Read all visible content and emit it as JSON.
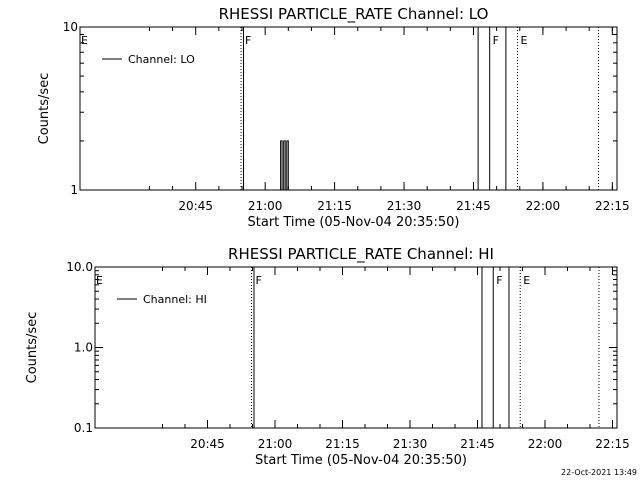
{
  "colors": {
    "background": "#ffffff",
    "foreground": "#000000"
  },
  "timestamp": "22-Oct-2021 13:49",
  "chart_data": [
    {
      "type": "line",
      "title": "RHESSI PARTICLE_RATE Channel: LO",
      "xlabel": "Start Time (05-Nov-04 20:35:50)",
      "ylabel": "Counts/sec",
      "yscale": "log",
      "ylim": [
        1,
        10
      ],
      "xlim_minutes": [
        -15.83,
        100.17
      ],
      "x_ticks": [
        "20:45",
        "21:00",
        "21:15",
        "21:30",
        "21:45",
        "22:00",
        "22:15"
      ],
      "y_ticks": [
        "1",
        "10"
      ],
      "series": [
        {
          "name": "Channel: LO",
          "style": "histogram",
          "x": [
            "21:02:40",
            "21:03:20",
            "21:03:40",
            "21:04:00",
            "21:04:20",
            "21:04:40",
            "21:05:00",
            "21:05:20"
          ],
          "values": [
            1,
            2,
            1,
            2,
            1,
            2,
            1,
            1
          ]
        }
      ],
      "markers": [
        {
          "label": "E",
          "time": "20:35:50",
          "style": "none"
        },
        {
          "label": "F",
          "time": "20:55:00",
          "style": "dotted-solid"
        },
        {
          "label": "",
          "time": "21:46:00",
          "style": "solid"
        },
        {
          "label": "F",
          "time": "21:48:30",
          "style": "solid"
        },
        {
          "label": "",
          "time": "21:52:00",
          "style": "solid"
        },
        {
          "label": "E",
          "time": "21:54:30",
          "style": "dotted"
        },
        {
          "label": "",
          "time": "22:12:00",
          "style": "dotted"
        }
      ],
      "legend": {
        "position": "top-left",
        "entries": [
          "Channel: LO"
        ]
      }
    },
    {
      "type": "line",
      "title": "RHESSI PARTICLE_RATE Channel: HI",
      "xlabel": "Start Time (05-Nov-04 20:35:50)",
      "ylabel": "Counts/sec",
      "yscale": "log",
      "ylim": [
        0.1,
        10
      ],
      "xlim_minutes": [
        -15.83,
        100.17
      ],
      "x_ticks": [
        "20:45",
        "21:00",
        "21:15",
        "21:30",
        "21:45",
        "22:00",
        "22:15"
      ],
      "y_ticks": [
        "0.1",
        "1.0",
        "10.0"
      ],
      "series": [
        {
          "name": "Channel: HI",
          "style": "histogram",
          "x": [],
          "values": []
        }
      ],
      "markers": [
        {
          "label": "E",
          "time": "20:35:50",
          "style": "none"
        },
        {
          "label": "F",
          "time": "20:55:00",
          "style": "dotted-solid"
        },
        {
          "label": "",
          "time": "21:46:00",
          "style": "solid"
        },
        {
          "label": "F",
          "time": "21:48:30",
          "style": "solid"
        },
        {
          "label": "",
          "time": "21:52:00",
          "style": "solid"
        },
        {
          "label": "E",
          "time": "21:54:30",
          "style": "dotted"
        },
        {
          "label": "",
          "time": "22:12:00",
          "style": "dotted"
        }
      ],
      "legend": {
        "position": "top-left",
        "entries": [
          "Channel: HI"
        ]
      }
    }
  ]
}
